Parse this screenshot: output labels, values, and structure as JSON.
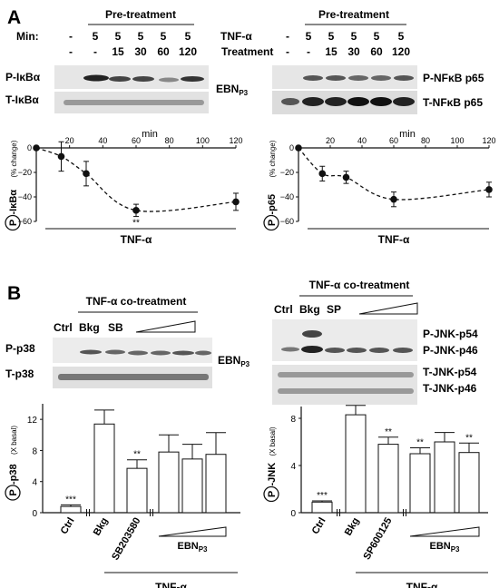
{
  "panelA": {
    "label": "A",
    "left": {
      "pretreatment": "Pre-treatment",
      "min_label": "Min:",
      "lane_values": [
        "-",
        "5",
        "5",
        "5",
        "5",
        "5"
      ],
      "treatment_values": [
        "-",
        "-",
        "15",
        "30",
        "60",
        "120"
      ],
      "blot_labels": [
        "P-IκBα",
        "T-IκBα"
      ],
      "side_label": "EBN",
      "side_label_sub": "P3",
      "chart_data": {
        "type": "line",
        "x": [
          0,
          15,
          30,
          60,
          120
        ],
        "y": [
          0,
          -7,
          -21,
          -51,
          -44
        ],
        "yerr": [
          0,
          12,
          10,
          5,
          7
        ],
        "sig": [
          "",
          "",
          "",
          "**",
          ""
        ],
        "xlim": [
          0,
          120
        ],
        "ylim": [
          -60,
          0
        ],
        "xticks": [
          "0",
          "20",
          "40",
          "60",
          "80",
          "100",
          "120"
        ],
        "yticks": [
          "0",
          "−20",
          "−40",
          "−60"
        ],
        "x_unit": "min",
        "ylabel_circle": "P",
        "ylabel": "-IκBα",
        "ylabel_small": "(% change)",
        "xlabel": "TNF-α"
      }
    },
    "right": {
      "pretreatment": "Pre-treatment",
      "tnf_label": "TNF-α",
      "treatment_label": "Treatment",
      "lane_values": [
        "-",
        "5",
        "5",
        "5",
        "5",
        "5"
      ],
      "treatment_values": [
        "-",
        "-",
        "15",
        "30",
        "60",
        "120"
      ],
      "blot_labels": [
        "P-NFκB p65",
        "T-NFκB p65"
      ],
      "chart_data": {
        "type": "line",
        "x": [
          0,
          15,
          30,
          60,
          120
        ],
        "y": [
          0,
          -21,
          -24,
          -42,
          -34
        ],
        "yerr": [
          0,
          6,
          5,
          6,
          6
        ],
        "xlim": [
          0,
          120
        ],
        "ylim": [
          -60,
          0
        ],
        "xticks": [
          "0",
          "20",
          "40",
          "60",
          "80",
          "100",
          "120"
        ],
        "yticks": [
          "0",
          "−20",
          "−40",
          "−60"
        ],
        "x_unit": "min",
        "ylabel_circle": "P",
        "ylabel": "-p65",
        "ylabel_small": "(% change)",
        "xlabel": "TNF-α"
      }
    }
  },
  "panelB": {
    "label": "B",
    "left": {
      "cotreatment": "TNF-α co-treatment",
      "lanes": [
        "Ctrl",
        "Bkg",
        "SB"
      ],
      "blot_labels": [
        "P-p38",
        "T-p38"
      ],
      "side_label": "EBN",
      "side_label_sub": "P3",
      "chart_data": {
        "type": "bar",
        "categories": [
          "Ctrl",
          "Bkg",
          "SB203580",
          "",
          "",
          ""
        ],
        "values": [
          0.8,
          11.4,
          5.7,
          7.8,
          6.9,
          7.5
        ],
        "errors": [
          0.2,
          1.8,
          1.1,
          2.2,
          1.9,
          2.8
        ],
        "sig": [
          "***",
          "",
          "**",
          "",
          "",
          ""
        ],
        "ylim": [
          0,
          14
        ],
        "yticks": [
          "0",
          "4",
          "8",
          "12"
        ],
        "ylabel_circle": "P",
        "ylabel": "-p38",
        "ylabel_small": "(X basal)",
        "group_label": "EBN",
        "group_label_sub": "P3",
        "xlabel": "TNF-α"
      }
    },
    "right": {
      "cotreatment": "TNF-α co-treatment",
      "lanes": [
        "Ctrl",
        "Bkg",
        "SP"
      ],
      "blot_labels": [
        "P-JNK-p54",
        "P-JNK-p46",
        "T-JNK-p54",
        "T-JNK-p46"
      ],
      "chart_data": {
        "type": "bar",
        "categories": [
          "Ctrl",
          "Bkg",
          "SP600125",
          "",
          "",
          ""
        ],
        "values": [
          0.9,
          8.3,
          5.8,
          5.0,
          6.0,
          5.1
        ],
        "errors": [
          0.1,
          0.8,
          0.6,
          0.5,
          0.8,
          0.8
        ],
        "sig": [
          "***",
          "",
          "**",
          "**",
          "",
          "**"
        ],
        "ylim": [
          0,
          9
        ],
        "yticks": [
          "0",
          "4",
          "8"
        ],
        "ylabel_circle": "P",
        "ylabel": "-JNK",
        "ylabel_small": "(X basal)",
        "group_label": "EBN",
        "group_label_sub": "P3",
        "xlabel": "TNF-α"
      }
    }
  }
}
